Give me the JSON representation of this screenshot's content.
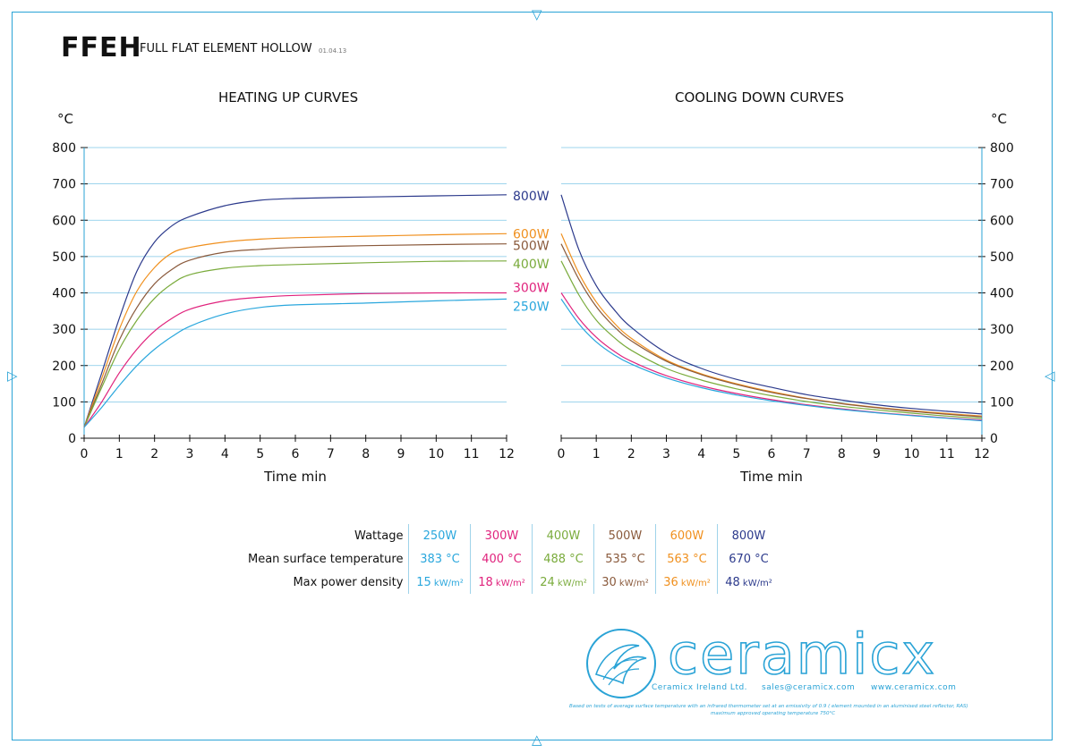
{
  "header": {
    "code": "FFEH",
    "name": "FULL FLAT ELEMENT HOLLOW",
    "date": "01.04.13"
  },
  "unit_label": "°C",
  "colors": {
    "frame": "#2aa3d6",
    "grid": "#7ec6e6",
    "250W": "#2aa7dd",
    "300W": "#e0237d",
    "400W": "#7aab3c",
    "500W": "#8a5a3c",
    "600W": "#f0901e",
    "800W": "#2c3a8c"
  },
  "chart_data": [
    {
      "type": "line",
      "title": "HEATING UP CURVES",
      "xlabel": "Time min",
      "ylabel": "°C",
      "xlim": [
        0,
        12
      ],
      "ylim": [
        0,
        800
      ],
      "x_ticks": [
        "0",
        "1",
        "2",
        "3",
        "4",
        "5",
        "6",
        "7",
        "8",
        "9",
        "10",
        "11",
        "12"
      ],
      "y_ticks": [
        "0",
        "100",
        "200",
        "300",
        "400",
        "500",
        "600",
        "700",
        "800"
      ],
      "grid": true,
      "series": [
        {
          "name": "800W",
          "color": "#2c3a8c",
          "x": [
            0,
            0.5,
            1,
            1.5,
            2,
            2.5,
            3,
            4,
            5,
            6,
            8,
            10,
            12
          ],
          "y": [
            30,
            180,
            330,
            460,
            540,
            585,
            610,
            640,
            655,
            660,
            664,
            667,
            670
          ]
        },
        {
          "name": "600W",
          "color": "#f0901e",
          "x": [
            0,
            0.5,
            1,
            1.5,
            2,
            2.5,
            3,
            4,
            5,
            6,
            8,
            10,
            12
          ],
          "y": [
            30,
            165,
            300,
            405,
            470,
            510,
            525,
            540,
            548,
            552,
            556,
            560,
            563
          ]
        },
        {
          "name": "500W",
          "color": "#8a5a3c",
          "x": [
            0,
            0.5,
            1,
            1.5,
            2,
            2.5,
            3,
            4,
            5,
            6,
            8,
            10,
            12
          ],
          "y": [
            30,
            150,
            270,
            360,
            425,
            465,
            490,
            512,
            520,
            525,
            530,
            533,
            535
          ]
        },
        {
          "name": "400W",
          "color": "#7aab3c",
          "x": [
            0,
            0.5,
            1,
            1.5,
            2,
            2.5,
            3,
            4,
            5,
            6,
            8,
            10,
            12
          ],
          "y": [
            30,
            140,
            245,
            325,
            385,
            425,
            450,
            468,
            475,
            478,
            483,
            487,
            488
          ]
        },
        {
          "name": "300W",
          "color": "#e0237d",
          "x": [
            0,
            0.5,
            1,
            1.5,
            2,
            2.5,
            3,
            4,
            5,
            6,
            8,
            10,
            12
          ],
          "y": [
            30,
            100,
            180,
            245,
            295,
            330,
            355,
            378,
            388,
            393,
            398,
            400,
            400
          ]
        },
        {
          "name": "250W",
          "color": "#2aa7dd",
          "x": [
            0,
            0.5,
            1,
            1.5,
            2,
            2.5,
            3,
            4,
            5,
            6,
            8,
            10,
            12
          ],
          "y": [
            30,
            85,
            145,
            200,
            245,
            280,
            308,
            342,
            360,
            367,
            372,
            378,
            383
          ]
        }
      ]
    },
    {
      "type": "line",
      "title": "COOLING DOWN CURVES",
      "xlabel": "Time min",
      "ylabel": "°C",
      "xlim": [
        0,
        12
      ],
      "ylim": [
        0,
        800
      ],
      "x_ticks": [
        "0",
        "1",
        "2",
        "3",
        "4",
        "5",
        "6",
        "7",
        "8",
        "9",
        "10",
        "11",
        "12"
      ],
      "y_ticks": [
        "0",
        "100",
        "200",
        "300",
        "400",
        "500",
        "600",
        "700",
        "800"
      ],
      "grid": true,
      "series": [
        {
          "name": "800W",
          "color": "#2c3a8c",
          "x": [
            0,
            0.5,
            1,
            1.5,
            2,
            3,
            4,
            5,
            6,
            7,
            8,
            9,
            10,
            11,
            12
          ],
          "y": [
            670,
            520,
            420,
            355,
            305,
            235,
            192,
            162,
            140,
            120,
            105,
            92,
            82,
            74,
            67
          ]
        },
        {
          "name": "600W",
          "color": "#f0901e",
          "x": [
            0,
            0.5,
            1,
            1.5,
            2,
            3,
            4,
            5,
            6,
            7,
            8,
            9,
            10,
            11,
            12
          ],
          "y": [
            563,
            455,
            375,
            318,
            275,
            215,
            177,
            150,
            128,
            110,
            96,
            85,
            76,
            68,
            61
          ]
        },
        {
          "name": "500W",
          "color": "#8a5a3c",
          "x": [
            0,
            0.5,
            1,
            1.5,
            2,
            3,
            4,
            5,
            6,
            7,
            8,
            9,
            10,
            11,
            12
          ],
          "y": [
            535,
            438,
            362,
            308,
            268,
            212,
            175,
            148,
            126,
            109,
            95,
            84,
            74,
            66,
            59
          ]
        },
        {
          "name": "400W",
          "color": "#7aab3c",
          "x": [
            0,
            0.5,
            1,
            1.5,
            2,
            3,
            4,
            5,
            6,
            7,
            8,
            9,
            10,
            11,
            12
          ],
          "y": [
            488,
            395,
            325,
            278,
            242,
            192,
            160,
            136,
            117,
            101,
            88,
            78,
            69,
            61,
            55
          ]
        },
        {
          "name": "300W",
          "color": "#e0237d",
          "x": [
            0,
            0.5,
            1,
            1.5,
            2,
            3,
            4,
            5,
            6,
            7,
            8,
            9,
            10,
            11,
            12
          ],
          "y": [
            400,
            330,
            278,
            240,
            212,
            172,
            144,
            123,
            106,
            92,
            81,
            71,
            63,
            56,
            50
          ]
        },
        {
          "name": "250W",
          "color": "#2aa7dd",
          "x": [
            0,
            0.5,
            1,
            1.5,
            2,
            3,
            4,
            5,
            6,
            7,
            8,
            9,
            10,
            11,
            12
          ],
          "y": [
            383,
            315,
            265,
            230,
            204,
            166,
            139,
            119,
            103,
            90,
            79,
            70,
            62,
            55,
            48
          ]
        }
      ]
    }
  ],
  "spec_table": {
    "rows": [
      {
        "label": "Wattage",
        "values": [
          "250W",
          "300W",
          "400W",
          "500W",
          "600W",
          "800W"
        ],
        "units": [
          "",
          "",
          "",
          "",
          "",
          ""
        ]
      },
      {
        "label": "Mean surface temperature",
        "values": [
          "383 °C",
          "400 °C",
          "488 °C",
          "535 °C",
          "563 °C",
          "670 °C"
        ],
        "units": [
          "",
          "",
          "",
          "",
          "",
          ""
        ]
      },
      {
        "label": "Max power density",
        "values": [
          "15",
          "18",
          "24",
          "30",
          "36",
          "48"
        ],
        "units": [
          " kW/m²",
          " kW/m²",
          " kW/m²",
          " kW/m²",
          " kW/m²",
          " kW/m²"
        ]
      }
    ],
    "colors": [
      "#2aa7dd",
      "#e0237d",
      "#7aab3c",
      "#8a5a3c",
      "#f0901e",
      "#2c3a8c"
    ]
  },
  "logo": {
    "wordmark": "ceramicx",
    "company": "Ceramicx Ireland Ltd.",
    "email": "sales@ceramicx.com",
    "website": "www.ceramicx.com",
    "note_line1": "Based on tests of average surface temperature with an infrared thermometer set at an emissivity of 0.9 ( element mounted in an aluminised steel reflector, RAS)",
    "note_line2": "maximum approved operating temperature 750°C"
  }
}
